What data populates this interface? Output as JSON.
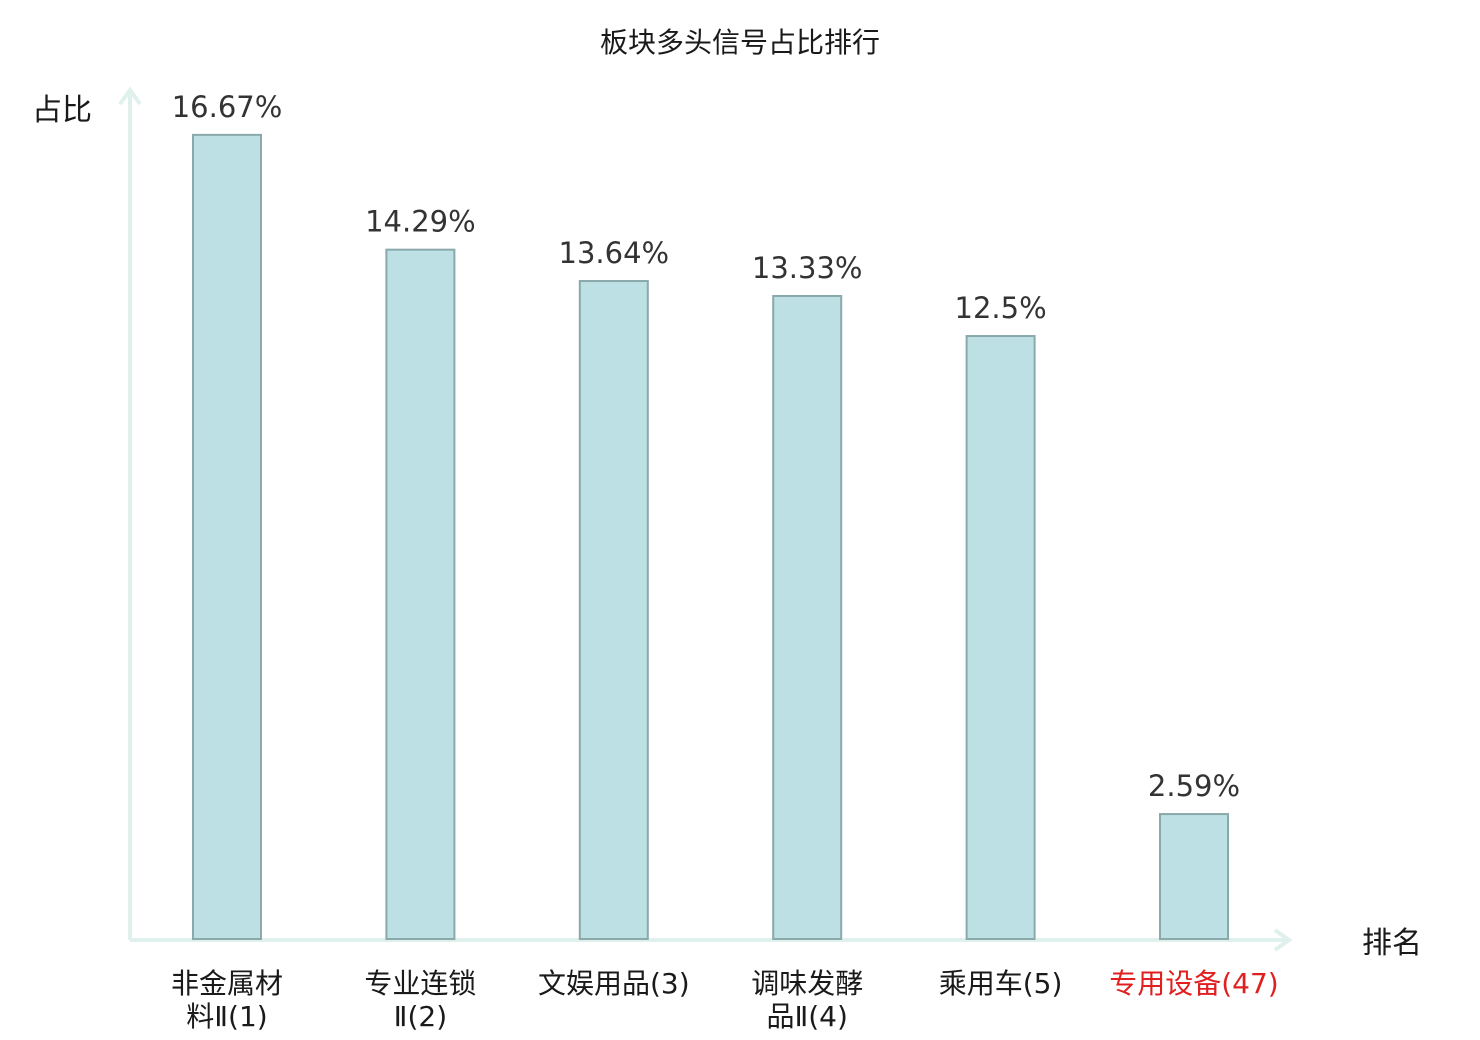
{
  "chart_data": {
    "type": "bar",
    "title": "板块多头信号占比排行",
    "ylabel": "占比",
    "xlabel": "排名",
    "ylim": [
      0,
      17.6
    ],
    "grid": false,
    "legend": "none",
    "categories": [
      {
        "lines": [
          "非金属材",
          "料Ⅱ(1)"
        ],
        "highlight": false
      },
      {
        "lines": [
          "专业连锁",
          "Ⅱ(2)"
        ],
        "highlight": false
      },
      {
        "lines": [
          "文娱用品(3)"
        ],
        "highlight": false
      },
      {
        "lines": [
          "调味发酵",
          "品Ⅱ(4)"
        ],
        "highlight": false
      },
      {
        "lines": [
          "乘用车(5)"
        ],
        "highlight": false
      },
      {
        "lines": [
          "专用设备(47)"
        ],
        "highlight": true
      }
    ],
    "values": [
      16.67,
      14.29,
      13.64,
      13.33,
      12.5,
      2.59
    ],
    "value_labels": [
      "16.67%",
      "14.29%",
      "13.64%",
      "13.33%",
      "12.5%",
      "2.59%"
    ],
    "colors": {
      "bar_fill": "#bce0e3",
      "bar_stroke": "#8aa9ab",
      "axis": "#dff0ed",
      "highlight_text": "#e02020"
    }
  }
}
